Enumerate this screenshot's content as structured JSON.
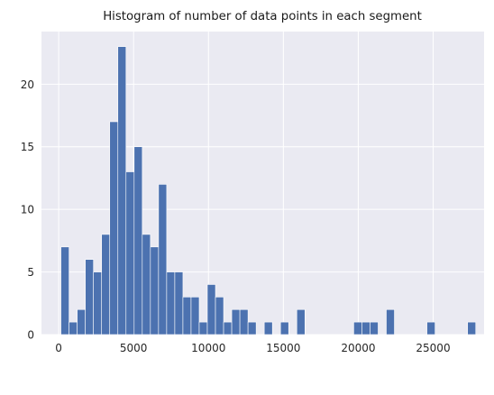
{
  "chart_data": {
    "type": "bar",
    "title": "Histogram of number of data points in each segment",
    "xlabel": "",
    "ylabel": "",
    "xlim": [
      -1150,
      28400
    ],
    "ylim": [
      0,
      24.2
    ],
    "x_ticks": [
      0,
      5000,
      10000,
      15000,
      20000,
      25000
    ],
    "x_tick_labels": [
      "0",
      "5000",
      "10000",
      "15000",
      "20000",
      "25000"
    ],
    "y_ticks": [
      0,
      5,
      10,
      15,
      20
    ],
    "y_tick_labels": [
      "0",
      "5",
      "10",
      "15",
      "20"
    ],
    "grid": true,
    "bar_color": "#4c72b0",
    "background_color": "#eaeaf2",
    "bins": {
      "start": 150,
      "width": 543,
      "counts": [
        7,
        1,
        2,
        6,
        5,
        8,
        17,
        23,
        13,
        15,
        8,
        7,
        12,
        5,
        5,
        3,
        3,
        1,
        4,
        3,
        1,
        2,
        2,
        1,
        0,
        1,
        0,
        1,
        0,
        2,
        0,
        0,
        0,
        0,
        0,
        0,
        1,
        1,
        1,
        0,
        2,
        0,
        0,
        0,
        0,
        1,
        0,
        0,
        0,
        0,
        1
      ]
    }
  }
}
